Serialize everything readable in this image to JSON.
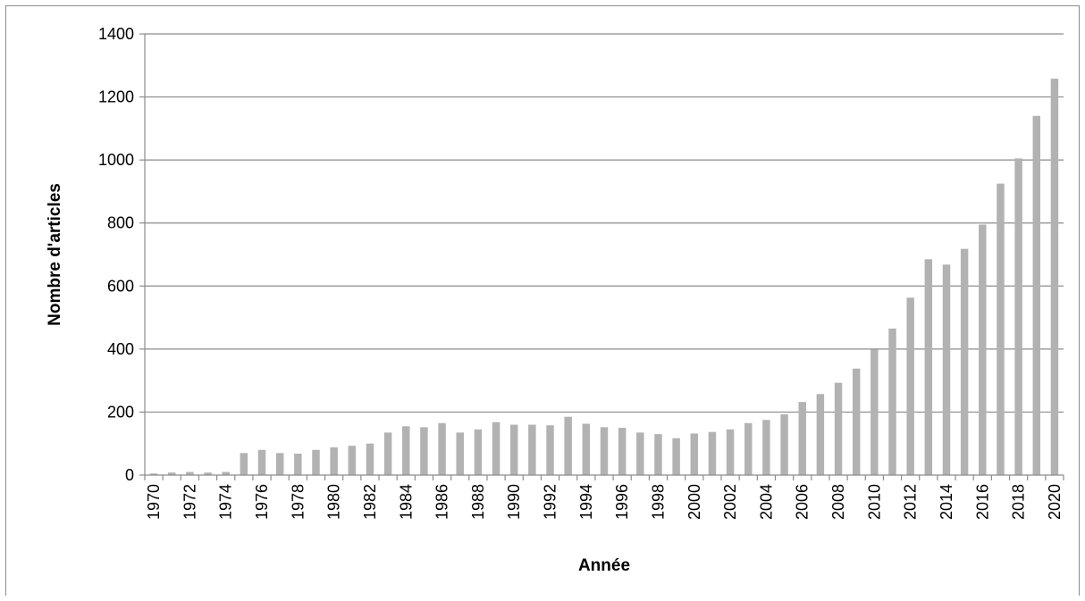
{
  "chart_data": {
    "type": "bar",
    "title": "",
    "xlabel": "Année",
    "ylabel": "Nombre d'articles",
    "ylim": [
      0,
      1400
    ],
    "y_ticks": [
      0,
      200,
      400,
      600,
      800,
      1000,
      1200,
      1400
    ],
    "grid": "horizontal",
    "bar_color": "#b2b2b2",
    "categories": [
      "1970",
      "1971",
      "1972",
      "1973",
      "1974",
      "1975",
      "1976",
      "1977",
      "1978",
      "1979",
      "1980",
      "1981",
      "1982",
      "1983",
      "1984",
      "1985",
      "1986",
      "1987",
      "1988",
      "1989",
      "1990",
      "1991",
      "1992",
      "1993",
      "1994",
      "1995",
      "1996",
      "1997",
      "1998",
      "1999",
      "2000",
      "2001",
      "2002",
      "2003",
      "2004",
      "2005",
      "2006",
      "2007",
      "2008",
      "2009",
      "2010",
      "2011",
      "2012",
      "2013",
      "2014",
      "2015",
      "2016",
      "2017",
      "2018",
      "2019",
      "2020"
    ],
    "x_tick_labels": [
      "1970",
      "1972",
      "1974",
      "1976",
      "1978",
      "1980",
      "1982",
      "1984",
      "1986",
      "1988",
      "1990",
      "1992",
      "1994",
      "1996",
      "1998",
      "2000",
      "2002",
      "2004",
      "2006",
      "2008",
      "2010",
      "2012",
      "2014",
      "2016",
      "2018",
      "2020"
    ],
    "values": [
      5,
      8,
      10,
      8,
      10,
      70,
      80,
      70,
      68,
      80,
      88,
      93,
      100,
      135,
      155,
      152,
      165,
      135,
      145,
      168,
      160,
      160,
      158,
      185,
      163,
      152,
      150,
      135,
      130,
      117,
      132,
      137,
      145,
      165,
      175,
      193,
      232,
      257,
      293,
      338,
      398,
      465,
      563,
      685,
      668,
      718,
      795,
      925,
      1005,
      1140,
      1258
    ]
  }
}
